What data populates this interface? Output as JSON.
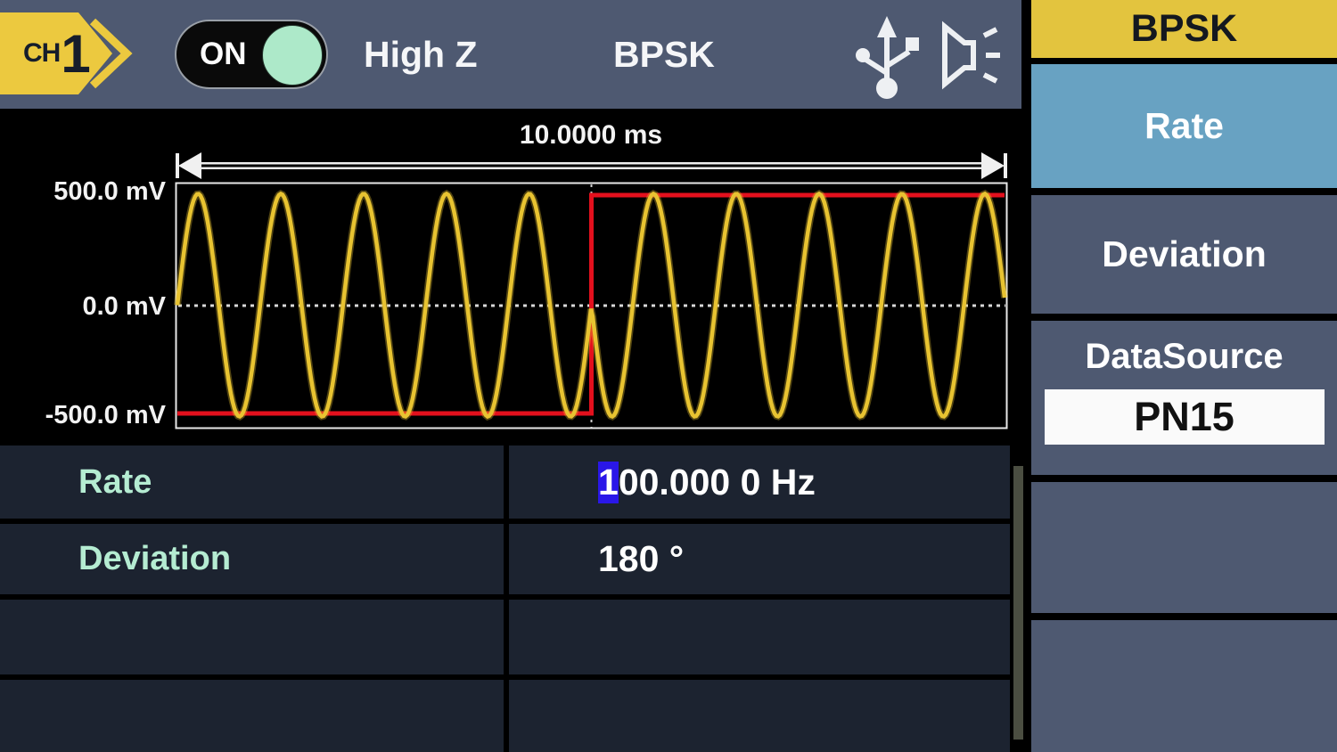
{
  "topbar": {
    "channel_prefix": "CH",
    "channel_number": "1",
    "output_toggle": "ON",
    "impedance": "High Z",
    "mode": "BPSK"
  },
  "waveform": {
    "time_span_label": "10.0000 ms",
    "y_tick_top": "500.0 mV",
    "y_tick_mid": "0.0 mV",
    "y_tick_bottom": "-500.0 mV"
  },
  "chart_data": {
    "type": "line",
    "title": "BPSK modulated carrier preview",
    "x_span_label": "10.0000 ms",
    "x_range_ms": [
      0,
      10
    ],
    "y_range_mv": [
      -500,
      500
    ],
    "y_ticks": [
      "500.0 mV",
      "0.0 mV",
      "-500.0 mV"
    ],
    "grid": "dotted zero line and dotted vertical marker at phase transition",
    "series": [
      {
        "name": "carrier",
        "color": "#e8c331",
        "amplitude_mv": 500,
        "cycles_before_transition": 5,
        "cycles_after_transition": 5,
        "phase_shift_deg_at_transition": 180,
        "description": "1 kHz sine, phase inverted 180 deg at 5 ms"
      },
      {
        "name": "modulation-data",
        "color": "#e3101d",
        "levels_mv": [
          -500,
          500
        ],
        "transition_ms": 5,
        "description": "binary level: low for 0-5 ms, high for 5-10 ms"
      }
    ]
  },
  "table": {
    "rows": [
      {
        "label": "Rate",
        "value_cursor_char": "1",
        "value_after_cursor": "00.000 0 Hz"
      },
      {
        "label": "Deviation",
        "value": "180 °"
      },
      {
        "label": "",
        "value": ""
      },
      {
        "label": "",
        "value": ""
      }
    ]
  },
  "sidebar": {
    "title": "BPSK",
    "items": [
      {
        "label": "Rate",
        "active": true
      },
      {
        "label": "Deviation",
        "active": false
      },
      {
        "label": "DataSource",
        "value": "PN15",
        "active": false
      },
      {
        "label": ""
      },
      {
        "label": ""
      }
    ]
  },
  "colors": {
    "topbar_bg": "#4e5971",
    "accent_yellow": "#e3c43e",
    "active_blue": "#68a2c2",
    "label_mint": "#b5ecd2",
    "cursor_blue": "#2a17e8",
    "trace_yellow": "#e8c331",
    "trace_red": "#e3101d",
    "toggle_green": "#ade9c9"
  }
}
